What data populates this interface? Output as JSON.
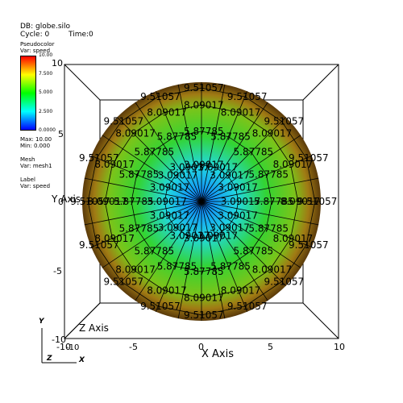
{
  "header": {
    "db": "DB: globe.silo",
    "cycle": "Cycle: 0",
    "time": "Time:0"
  },
  "pseudocolor": {
    "title": "Pseudocolor",
    "var": "Var: speed",
    "max_tick": "10.00",
    "ticks": [
      "7.500",
      "5.000",
      "2.500",
      "0.0000"
    ],
    "max": "Max: 10.00",
    "min": "Min: 0.000"
  },
  "mesh": {
    "title": "Mesh",
    "var": "Var: mesh1"
  },
  "label": {
    "title": "Label",
    "var": "Var: speed"
  },
  "axes": {
    "x_title": "X Axis",
    "y_title": "Y Axis",
    "z_title": "Z Axis",
    "x_ticks": [
      "-10",
      "-5",
      "0",
      "5",
      "10"
    ],
    "y_ticks": [
      "10",
      "5",
      "0",
      "-5",
      "-10"
    ],
    "z_ticks": [
      "-10"
    ],
    "triad": {
      "x": "X",
      "y": "Y",
      "z": "Z"
    }
  },
  "colors": {
    "center": "#1a9dff",
    "mid": "#36d336",
    "outer": "#6b4a10",
    "bbox": "#000000"
  },
  "ring_labels": [
    {
      "value": "3.09017",
      "radius": 3.09017
    },
    {
      "value": "5.87785",
      "radius": 5.87785
    },
    {
      "value": "8.09017",
      "radius": 8.09017
    },
    {
      "value": "9.51057",
      "radius": 9.51057
    }
  ],
  "label_angles_deg": [
    0,
    22.5,
    45,
    67.5,
    90,
    112.5,
    135,
    157.5,
    180,
    202.5,
    225,
    247.5,
    270,
    292.5,
    315,
    337.5
  ]
}
